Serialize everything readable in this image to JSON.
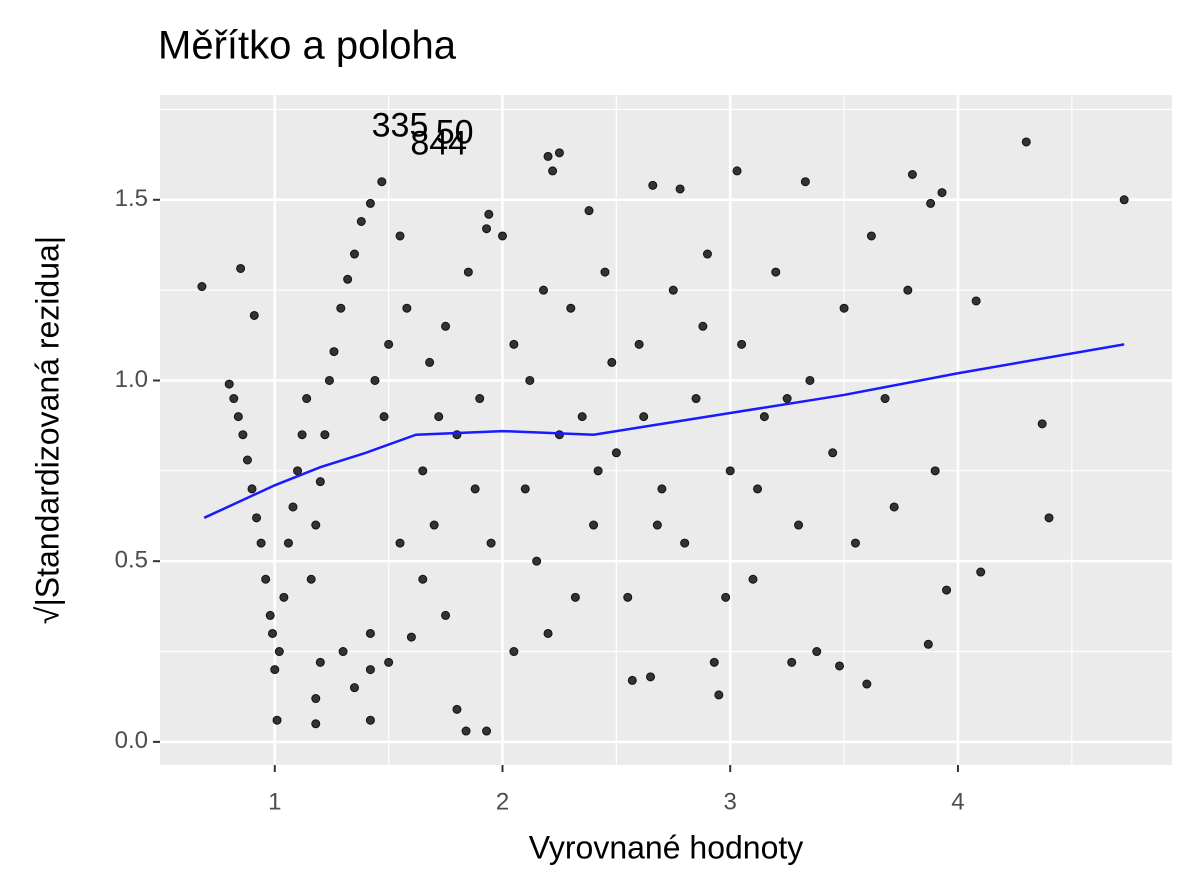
{
  "chart_data": {
    "type": "scatter",
    "title": "Měřítko a poloha",
    "x_label": "Vyrovnané hodnoty",
    "y_label": "√|Standardizovaná rezidua|",
    "xlim": [
      0.496,
      4.94
    ],
    "ylim": [
      -0.064,
      1.79
    ],
    "xticks": [
      1,
      2,
      3,
      4
    ],
    "yticks": [
      {
        "value": 0,
        "label": "0.0"
      },
      {
        "value": 0.5,
        "label": "0.5"
      },
      {
        "value": 1,
        "label": "1.0"
      },
      {
        "value": 1.5,
        "label": "1.5"
      }
    ],
    "xminor": [
      1.5,
      2.5,
      3.5,
      4.5
    ],
    "yminor": [
      0.25,
      0.75,
      1.25,
      1.75
    ],
    "grid": true,
    "series": [
      {
        "color": "#333333",
        "x": [
          0.68,
          0.85,
          0.91,
          0.8,
          0.82,
          0.84,
          0.86,
          0.88,
          0.9,
          0.92,
          0.94,
          0.96,
          0.98,
          0.99,
          1.0,
          1.01,
          1.02,
          1.04,
          1.06,
          1.08,
          1.1,
          1.12,
          1.14,
          1.16,
          1.18,
          1.2,
          1.22,
          1.24,
          1.26,
          1.29,
          1.32,
          1.35,
          1.38,
          1.42,
          1.47,
          1.44,
          1.5,
          1.48,
          1.42,
          1.42,
          1.42,
          1.18,
          1.18,
          1.2,
          1.3,
          1.35,
          1.5,
          1.6,
          1.65,
          1.7,
          1.55,
          1.84,
          1.93,
          1.8,
          2.2,
          2.25,
          2.22,
          4.3,
          4.73,
          4.37,
          4.4,
          4.1,
          4.08,
          3.87,
          3.6,
          3.48,
          3.38,
          3.27,
          3.8,
          3.93,
          3.88,
          3.03,
          3.33,
          2.66,
          2.78,
          2.38,
          1.94,
          2.93,
          2.95,
          2.57,
          2.65,
          1.93,
          1.55,
          1.75,
          1.85,
          1.9,
          2.0,
          2.05,
          2.1,
          2.15,
          2.2,
          2.3,
          2.35,
          2.4,
          2.45,
          2.5,
          2.55,
          2.6,
          2.7,
          2.75,
          2.8,
          2.85,
          2.9,
          3.0,
          3.05,
          3.1,
          3.15,
          3.2,
          3.3,
          3.35,
          3.45,
          3.5,
          3.55,
          3.62,
          3.68,
          3.72,
          3.78,
          3.9,
          3.95,
          1.65,
          1.75,
          1.8,
          1.95,
          2.05,
          2.12,
          2.25,
          2.32,
          2.48,
          2.62,
          2.68,
          2.88,
          2.98,
          3.12,
          3.25,
          1.58,
          1.68,
          1.72,
          1.88,
          2.18,
          2.42
        ],
        "values": [
          1.26,
          1.31,
          1.18,
          0.99,
          0.95,
          0.9,
          0.85,
          0.78,
          0.7,
          0.62,
          0.55,
          0.45,
          0.35,
          0.3,
          0.2,
          0.06,
          0.25,
          0.4,
          0.55,
          0.65,
          0.75,
          0.85,
          0.95,
          0.45,
          0.6,
          0.72,
          0.85,
          1.0,
          1.08,
          1.2,
          1.28,
          1.35,
          1.44,
          1.49,
          1.55,
          1.0,
          1.1,
          0.9,
          0.06,
          0.2,
          0.3,
          0.12,
          0.05,
          0.22,
          0.25,
          0.15,
          0.22,
          0.29,
          0.45,
          0.6,
          0.55,
          0.03,
          0.03,
          0.09,
          1.62,
          1.63,
          1.58,
          1.66,
          1.5,
          0.88,
          0.62,
          0.47,
          1.22,
          0.27,
          0.16,
          0.21,
          0.25,
          0.22,
          1.57,
          1.52,
          1.49,
          1.58,
          1.55,
          1.54,
          1.53,
          1.47,
          1.46,
          0.22,
          0.13,
          0.17,
          0.18,
          1.42,
          1.4,
          1.15,
          1.3,
          0.95,
          1.4,
          1.1,
          0.7,
          0.5,
          0.3,
          1.2,
          0.9,
          0.6,
          1.3,
          0.8,
          0.4,
          1.1,
          0.7,
          1.25,
          0.55,
          0.95,
          1.35,
          0.75,
          1.1,
          0.45,
          0.9,
          1.3,
          0.6,
          1.0,
          0.8,
          1.2,
          0.55,
          1.4,
          0.95,
          0.65,
          1.25,
          0.75,
          0.42,
          0.75,
          0.35,
          0.85,
          0.55,
          0.25,
          1.0,
          0.85,
          0.4,
          1.05,
          0.9,
          0.6,
          1.15,
          0.4,
          0.7,
          0.95,
          1.2,
          1.05,
          0.9,
          0.7,
          1.25,
          0.75
        ]
      }
    ],
    "smooth": {
      "color": "#1a1aff",
      "x": [
        0.69,
        1.0,
        1.2,
        1.4,
        1.62,
        2.0,
        2.4,
        2.7,
        3.0,
        3.5,
        4.0,
        4.73
      ],
      "values": [
        0.62,
        0.71,
        0.76,
        0.8,
        0.85,
        0.86,
        0.85,
        0.88,
        0.91,
        0.96,
        1.02,
        1.1
      ]
    },
    "annotations": [
      {
        "text": "335",
        "x": 1.55,
        "y": 1.7
      },
      {
        "text": "50",
        "x": 1.79,
        "y": 1.68
      },
      {
        "text": "844",
        "x": 1.72,
        "y": 1.65
      }
    ]
  }
}
